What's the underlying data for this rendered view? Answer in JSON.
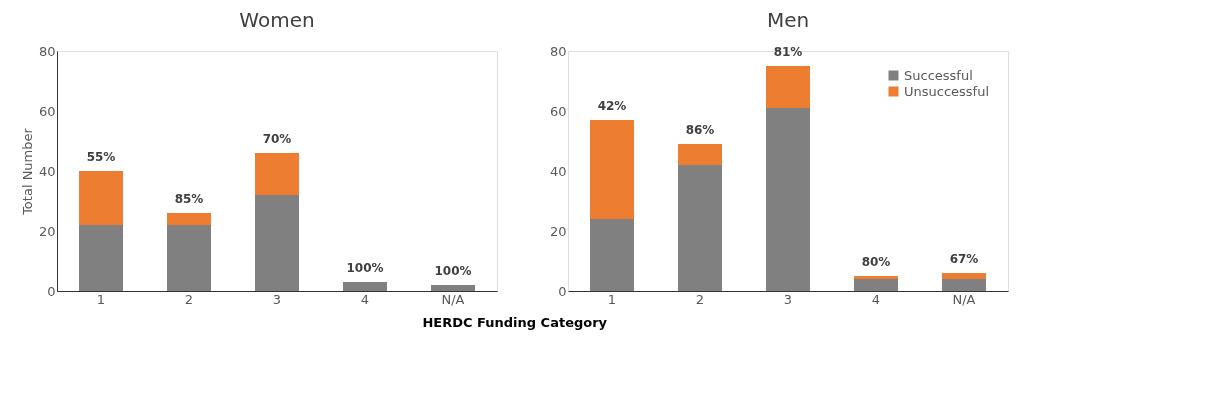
{
  "chart_data": [
    {
      "type": "bar",
      "title": "Women",
      "xlabel": "HERDC Funding Category",
      "ylabel": "Total Number",
      "categories": [
        "1",
        "2",
        "3",
        "4",
        "N/A"
      ],
      "stacked": true,
      "ylim": [
        0,
        80
      ],
      "yticks": [
        0,
        20,
        40,
        60,
        80
      ],
      "grid": false,
      "legend": false,
      "series": [
        {
          "color": "#808080",
          "values": [
            22,
            22,
            32,
            3,
            2
          ]
        },
        {
          "color": "#ed7d31",
          "values": [
            18,
            4,
            14,
            0,
            0
          ]
        }
      ],
      "annotations": [
        {
          "text": "55%",
          "x": "1",
          "y": 40
        },
        {
          "text": "85%",
          "x": "2",
          "y": 26
        },
        {
          "text": "70%",
          "x": "3",
          "y": 46
        },
        {
          "text": "100%",
          "x": "4",
          "y": 3
        },
        {
          "text": "100%",
          "x": "N/A",
          "y": 2
        }
      ]
    },
    {
      "type": "bar",
      "title": "Men",
      "categories": [
        "1",
        "2",
        "3",
        "4",
        "N/A"
      ],
      "stacked": true,
      "ylim": [
        0,
        80
      ],
      "yticks": [
        0,
        20,
        40,
        60,
        80
      ],
      "grid": false,
      "legend": "top right",
      "series": [
        {
          "name": "Successful",
          "color": "#808080",
          "values": [
            24,
            42,
            61,
            4,
            4
          ]
        },
        {
          "name": "Unsuccessful",
          "color": "#ed7d31",
          "values": [
            33,
            7,
            14,
            1,
            2
          ]
        }
      ],
      "annotations": [
        {
          "text": "42%",
          "x": "1",
          "y": 57
        },
        {
          "text": "86%",
          "x": "2",
          "y": 49
        },
        {
          "text": "81%",
          "x": "3",
          "y": 75
        },
        {
          "text": "80%",
          "x": "4",
          "y": 5
        },
        {
          "text": "67%",
          "x": "N/A",
          "y": 6
        }
      ]
    }
  ]
}
